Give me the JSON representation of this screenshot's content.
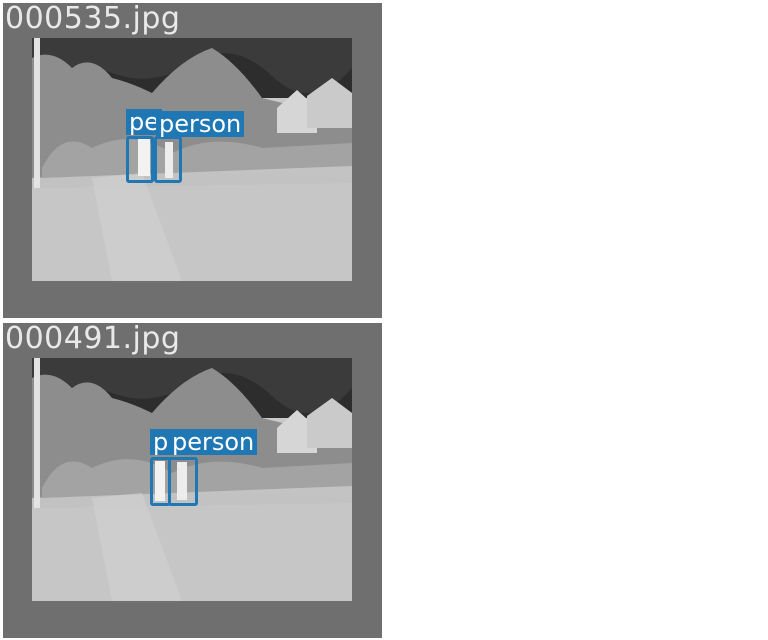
{
  "panels": [
    {
      "filename": "000535.jpg",
      "detections": [
        {
          "label": "person",
          "label_shown": "pe"
        },
        {
          "label": "person",
          "label_shown": "person"
        }
      ]
    },
    {
      "filename": "000491.jpg",
      "detections": [
        {
          "label": "person",
          "label_shown": "p"
        },
        {
          "label": "person",
          "label_shown": "person"
        }
      ]
    }
  ],
  "colors": {
    "panel_background": "#6f6f6f",
    "box": "#1f77b4",
    "label_text": "#ffffff",
    "filename_text": "#e9e9e9"
  }
}
